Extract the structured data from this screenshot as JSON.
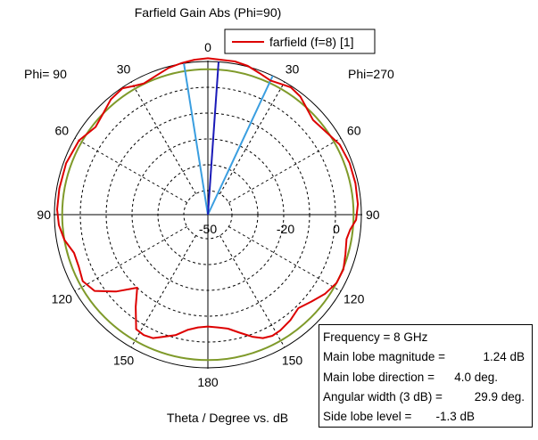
{
  "chart_data": {
    "type": "polar",
    "title": "Farfield Gain Abs (Phi=90)",
    "xlabel": "Theta / Degree vs. dB",
    "phi_left_label": "Phi= 90",
    "phi_right_label": "Phi=270",
    "angle_tick_labels": [
      "0",
      "30",
      "60",
      "90",
      "120",
      "150",
      "180",
      "150",
      "120",
      "90",
      "60",
      "30"
    ],
    "radial_tick_labels": [
      "-50",
      "-20",
      "0"
    ],
    "radial_range_db": [
      -50,
      0
    ],
    "radial_ring_levels_db": [
      -40,
      -30,
      -20,
      -10
    ],
    "legend": {
      "entries": [
        {
          "name": "farfield (f=8) [1]",
          "color": "#dd0000"
        }
      ],
      "placement": "top-right"
    },
    "series": [
      {
        "name": "farfield (f=8) [1]",
        "color": "#dd0000",
        "theta_deg": [
          0,
          10,
          15,
          20,
          25,
          30,
          33,
          38,
          43,
          48,
          55,
          62,
          70,
          78,
          86,
          92,
          96,
          100,
          106,
          112,
          118,
          124,
          130,
          136,
          142,
          148,
          152,
          156,
          160,
          165,
          170,
          175,
          180,
          185,
          190,
          195,
          200,
          204,
          208,
          212,
          218,
          224,
          230,
          236,
          242,
          248,
          254,
          260,
          266,
          272,
          280,
          290,
          300,
          308,
          314,
          320,
          326,
          330,
          334,
          340,
          345,
          350,
          355,
          360
        ],
        "gain_db": [
          1.24,
          0.9,
          0.3,
          -1.0,
          -2.0,
          -1.2,
          -0.5,
          -1.3,
          -3.2,
          -4.6,
          -3.5,
          -1.6,
          -1.0,
          -1.0,
          -1.2,
          -2.0,
          -4.0,
          -4.9,
          -4.0,
          -2.8,
          -3.0,
          -4.6,
          -7.0,
          -9.0,
          -7.5,
          -6.5,
          -6.2,
          -7.0,
          -9.0,
          -12.0,
          -14.5,
          -15.5,
          -16.0,
          -15.5,
          -14.0,
          -11.0,
          -9.0,
          -7.0,
          -6.5,
          -7.0,
          -14.0,
          -20.0,
          -13.0,
          -6.5,
          -4.5,
          -5.5,
          -5.5,
          -3.0,
          -1.6,
          -1.0,
          -1.0,
          -1.0,
          -1.8,
          -4.2,
          -3.0,
          -1.0,
          -0.3,
          -1.8,
          -2.8,
          -1.8,
          -0.5,
          0.2,
          0.9,
          1.24
        ]
      }
    ],
    "threshold_circle_db": -3.0,
    "main_lobe_direction_deg": 4.0,
    "beamwidth_lines_deg": [
      -9.0,
      25.0
    ],
    "info": [
      {
        "label": "Frequency = 8 GHz",
        "value": ""
      },
      {
        "label": "Main lobe magnitude =",
        "value": "1.24 dB"
      },
      {
        "label": "Main lobe direction =",
        "value": "4.0 deg."
      },
      {
        "label": "Angular width (3 dB) =",
        "value": "29.9 deg."
      },
      {
        "label": "Side lobe level =",
        "value": "-1.3 dB"
      }
    ],
    "colors": {
      "pattern": "#dd0000",
      "threshold_circle": "#7f9a2a",
      "main_lobe": "#1a1ab8",
      "beamwidth": "#3a9ee0",
      "grid": "#000000"
    }
  }
}
